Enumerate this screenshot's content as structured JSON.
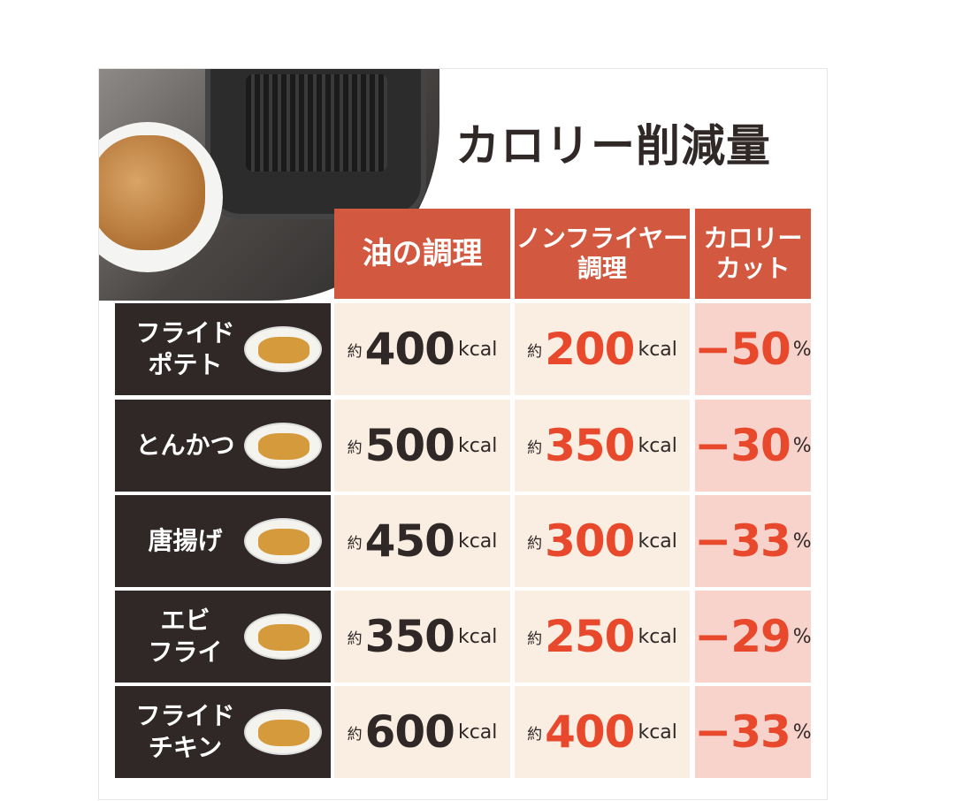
{
  "title": "カロリー削減量",
  "headers": [
    "油の調理",
    "ノンフライヤー\n調理",
    "カロリー\nカット"
  ],
  "prefix": "約",
  "unit": "kcal",
  "percent_unit": "%",
  "colors": {
    "header": "#d2583f",
    "label_bg": "#2f2826",
    "cell_bg": "#faeee3",
    "cut_bg": "#f7d3cc",
    "accent_text": "#e8482b"
  },
  "rows": [
    {
      "food": "フライド\nポテト",
      "icon": "french-fries-icon",
      "oil": "400",
      "nonfryer": "200",
      "cut": "−50"
    },
    {
      "food": "とんかつ",
      "icon": "tonkatsu-icon",
      "oil": "500",
      "nonfryer": "350",
      "cut": "−30"
    },
    {
      "food": "唐揚げ",
      "icon": "karaage-icon",
      "oil": "450",
      "nonfryer": "300",
      "cut": "−33"
    },
    {
      "food": "エビ\nフライ",
      "icon": "fried-shrimp-icon",
      "oil": "350",
      "nonfryer": "250",
      "cut": "−29"
    },
    {
      "food": "フライド\nチキン",
      "icon": "fried-chicken-icon",
      "oil": "600",
      "nonfryer": "400",
      "cut": "−33"
    }
  ]
}
